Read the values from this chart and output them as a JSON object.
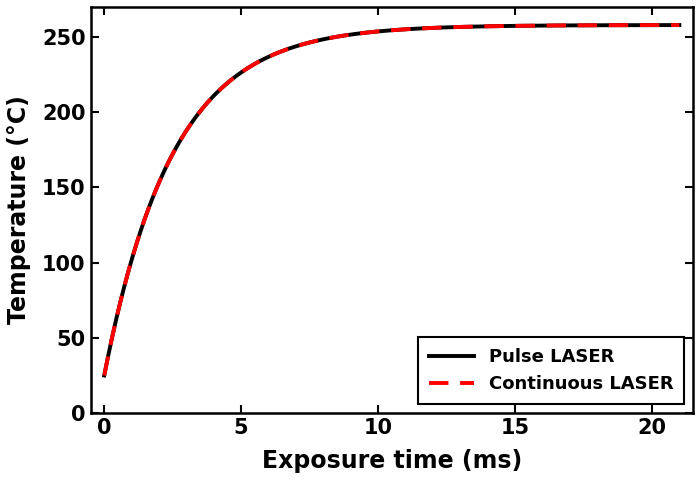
{
  "title": "",
  "xlabel": "Exposure time (ms)",
  "ylabel": "Temperature (°C)",
  "xlim": [
    -0.5,
    21.5
  ],
  "ylim": [
    0,
    270
  ],
  "xticks": [
    0,
    5,
    10,
    15,
    20
  ],
  "yticks": [
    0,
    50,
    100,
    150,
    200,
    250
  ],
  "T0": 25,
  "T_max": 258,
  "tau": 2.5,
  "pulse_color": "#000000",
  "continuous_color": "#ff0000",
  "pulse_lw": 2.8,
  "continuous_lw": 2.8,
  "pulse_label": "Pulse LASER",
  "continuous_label": "Continuous LASER",
  "legend_loc": "lower right",
  "legend_fontsize": 13,
  "axis_label_fontsize": 17,
  "tick_fontsize": 15,
  "background_color": "#ffffff",
  "fig_width": 7.0,
  "fig_height": 4.8
}
